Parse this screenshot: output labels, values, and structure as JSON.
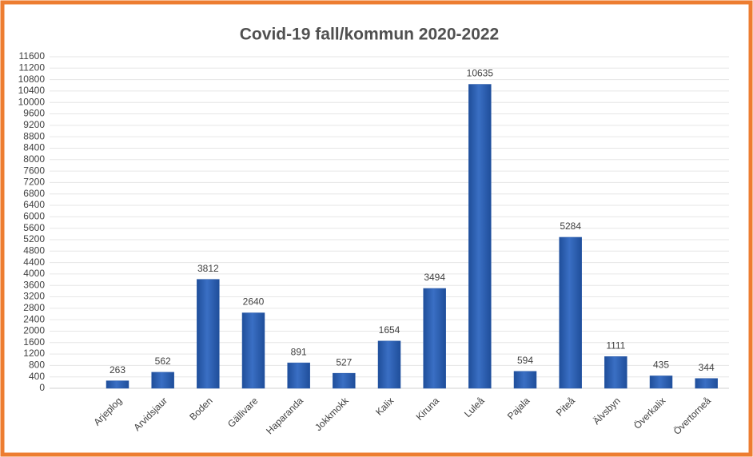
{
  "chart_data": {
    "type": "bar",
    "title": "Covid-19 fall/kommun 2020-2022",
    "categories": [
      null,
      "Arjeplog",
      "Arvidsjaur",
      "Boden",
      "Gällivare",
      "Haparanda",
      "Jokkmokk",
      "Kalix",
      "Kiruna",
      "Luleå",
      "Pajala",
      "Piteå",
      "Älvsbyn",
      "Överkalix",
      "Övertorneå"
    ],
    "values": [
      null,
      263,
      562,
      3812,
      2640,
      891,
      527,
      1654,
      3494,
      10635,
      594,
      5284,
      1111,
      435,
      344
    ],
    "color": "#3a6fc4",
    "ylim": [
      0,
      11600
    ],
    "yticks": [
      0,
      400,
      800,
      1200,
      1600,
      2000,
      2400,
      2800,
      3200,
      3600,
      4000,
      4400,
      4800,
      5200,
      5600,
      6000,
      6400,
      6800,
      7200,
      7600,
      8000,
      8400,
      8800,
      9200,
      9600,
      10000,
      10400,
      10800,
      11200,
      11600
    ],
    "grid": true
  }
}
